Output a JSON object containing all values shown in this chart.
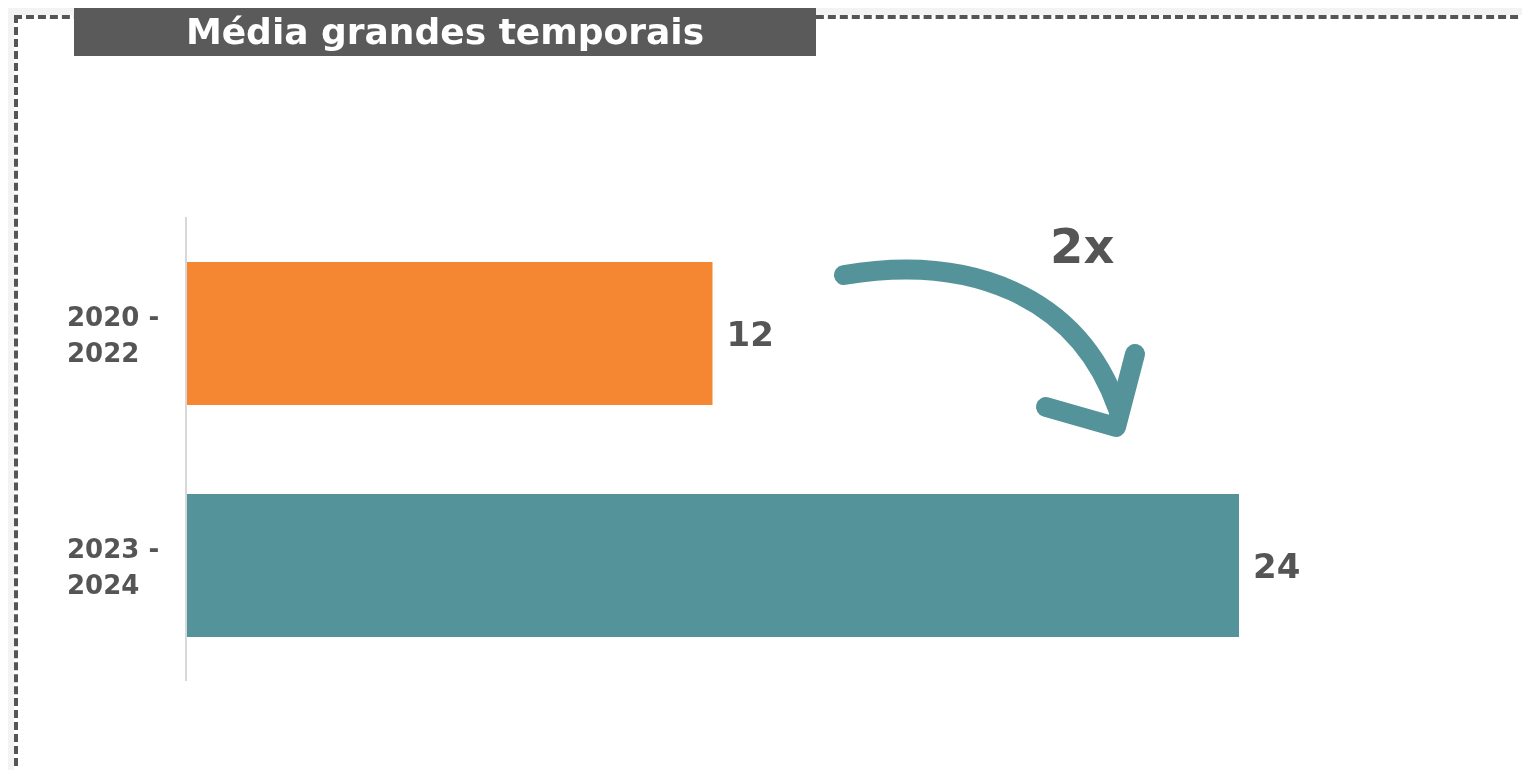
{
  "chart_data": {
    "type": "bar",
    "title": "Média grandes temporais",
    "orientation": "horizontal",
    "categories": [
      "2020 - 2022",
      "2023 - 2024"
    ],
    "values": [
      12,
      24
    ],
    "colors": [
      "#f58733",
      "#54939a"
    ],
    "data_labels": true,
    "annotations": [
      "2x"
    ]
  }
}
